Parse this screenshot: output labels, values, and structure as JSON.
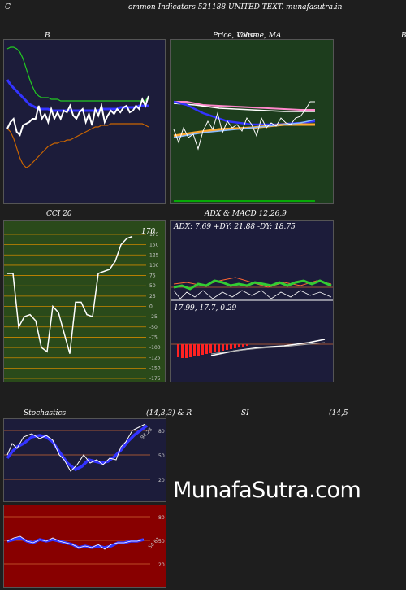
{
  "page": {
    "title_left": "C",
    "title_main": "ommon  Indicators 521188  UNITED TEXT. munafasutra.in",
    "watermark": "MunafaSutra.com"
  },
  "panels": {
    "bb": {
      "title": "B",
      "bg": "#1c1c3a"
    },
    "price": {
      "title_main": "Price,  Volume,  MA",
      "title_overlay": "Close",
      "title_right": "B",
      "bg": "#1d3d1d"
    },
    "cci": {
      "title": "CCI 20",
      "bg": "#2a4a1a",
      "last_label": "170",
      "levels": [
        "175",
        "150",
        "125",
        "100",
        "75",
        "50",
        "25",
        "0",
        "-25",
        "-50",
        "-75",
        "-100",
        "-125",
        "-150",
        "-175"
      ]
    },
    "adx": {
      "title": "ADX  & MACD 12,26,9",
      "adx_text": "ADX: 7.69 +DY: 21.88  -DY: 18.75",
      "macd_text": "17.99,  17.7,  0.29",
      "bg": "#1c1c3a"
    },
    "stoch": {
      "title": "Stochastics",
      "params": "(14,3,3) & R",
      "last_label": "94.23",
      "levels": [
        "80",
        "50",
        "20"
      ],
      "bg": "#1c1c3a"
    },
    "rsi": {
      "title": "SI",
      "params": "(14,5",
      "last_label": "54.61",
      "levels": [
        "80",
        "50",
        "20"
      ],
      "bg": "#880000"
    }
  },
  "chart_data": [
    {
      "type": "line",
      "title": "B",
      "x": [
        0,
        1,
        2,
        3,
        4,
        5,
        6,
        7,
        8,
        9,
        10,
        11,
        12,
        13,
        14,
        15,
        16,
        17,
        18,
        19,
        20,
        21,
        22,
        23,
        24,
        25,
        26,
        27,
        28,
        29,
        30,
        31,
        32,
        33,
        34,
        35,
        36,
        37,
        38,
        39,
        40,
        41,
        42,
        43,
        44,
        45
      ],
      "series": [
        {
          "name": "upper",
          "values": [
            95,
            96,
            96,
            95,
            93,
            89,
            83,
            77,
            72,
            68,
            66,
            65,
            65,
            65,
            64,
            64,
            64,
            63,
            63,
            63,
            63,
            63,
            63,
            63,
            63,
            63,
            63,
            63,
            63,
            63,
            63,
            63,
            63,
            63,
            63,
            63,
            63,
            63,
            63,
            63,
            63,
            63,
            63,
            63,
            63,
            66
          ]
        },
        {
          "name": "middle",
          "values": [
            76,
            73,
            71,
            69,
            67,
            65,
            63,
            61,
            60,
            59,
            58,
            58,
            58,
            58,
            57,
            57,
            57,
            57,
            57,
            57,
            57,
            57,
            57,
            57,
            57,
            57,
            57,
            57,
            57,
            57,
            58,
            58,
            58,
            58,
            58,
            58,
            59,
            59,
            59,
            59,
            59,
            59,
            60,
            60,
            60,
            60
          ]
        },
        {
          "name": "lower",
          "values": [
            46,
            44,
            40,
            34,
            28,
            24,
            22,
            23,
            25,
            27,
            29,
            31,
            33,
            35,
            36,
            37,
            37,
            38,
            38,
            39,
            39,
            40,
            41,
            42,
            43,
            44,
            45,
            46,
            47,
            47,
            48,
            48,
            48,
            49,
            49,
            49,
            49,
            49,
            49,
            49,
            49,
            49,
            49,
            49,
            48,
            47
          ]
        },
        {
          "name": "price",
          "values": [
            46,
            50,
            52,
            44,
            42,
            48,
            49,
            50,
            52,
            52,
            60,
            52,
            55,
            50,
            58,
            52,
            56,
            52,
            57,
            56,
            60,
            54,
            52,
            56,
            58,
            50,
            55,
            48,
            58,
            54,
            60,
            50,
            54,
            57,
            55,
            58,
            56,
            59,
            60,
            56,
            57,
            60,
            58,
            64,
            60,
            66
          ]
        }
      ]
    },
    {
      "type": "cci",
      "title": "CCI 20",
      "ylim": [
        -175,
        175
      ],
      "values": [
        80,
        80,
        -50,
        -25,
        -20,
        -35,
        -100,
        -110,
        0,
        -15,
        -65,
        -115,
        10,
        10,
        -20,
        -25,
        80,
        85,
        90,
        110,
        150,
        165,
        170
      ]
    }
  ]
}
